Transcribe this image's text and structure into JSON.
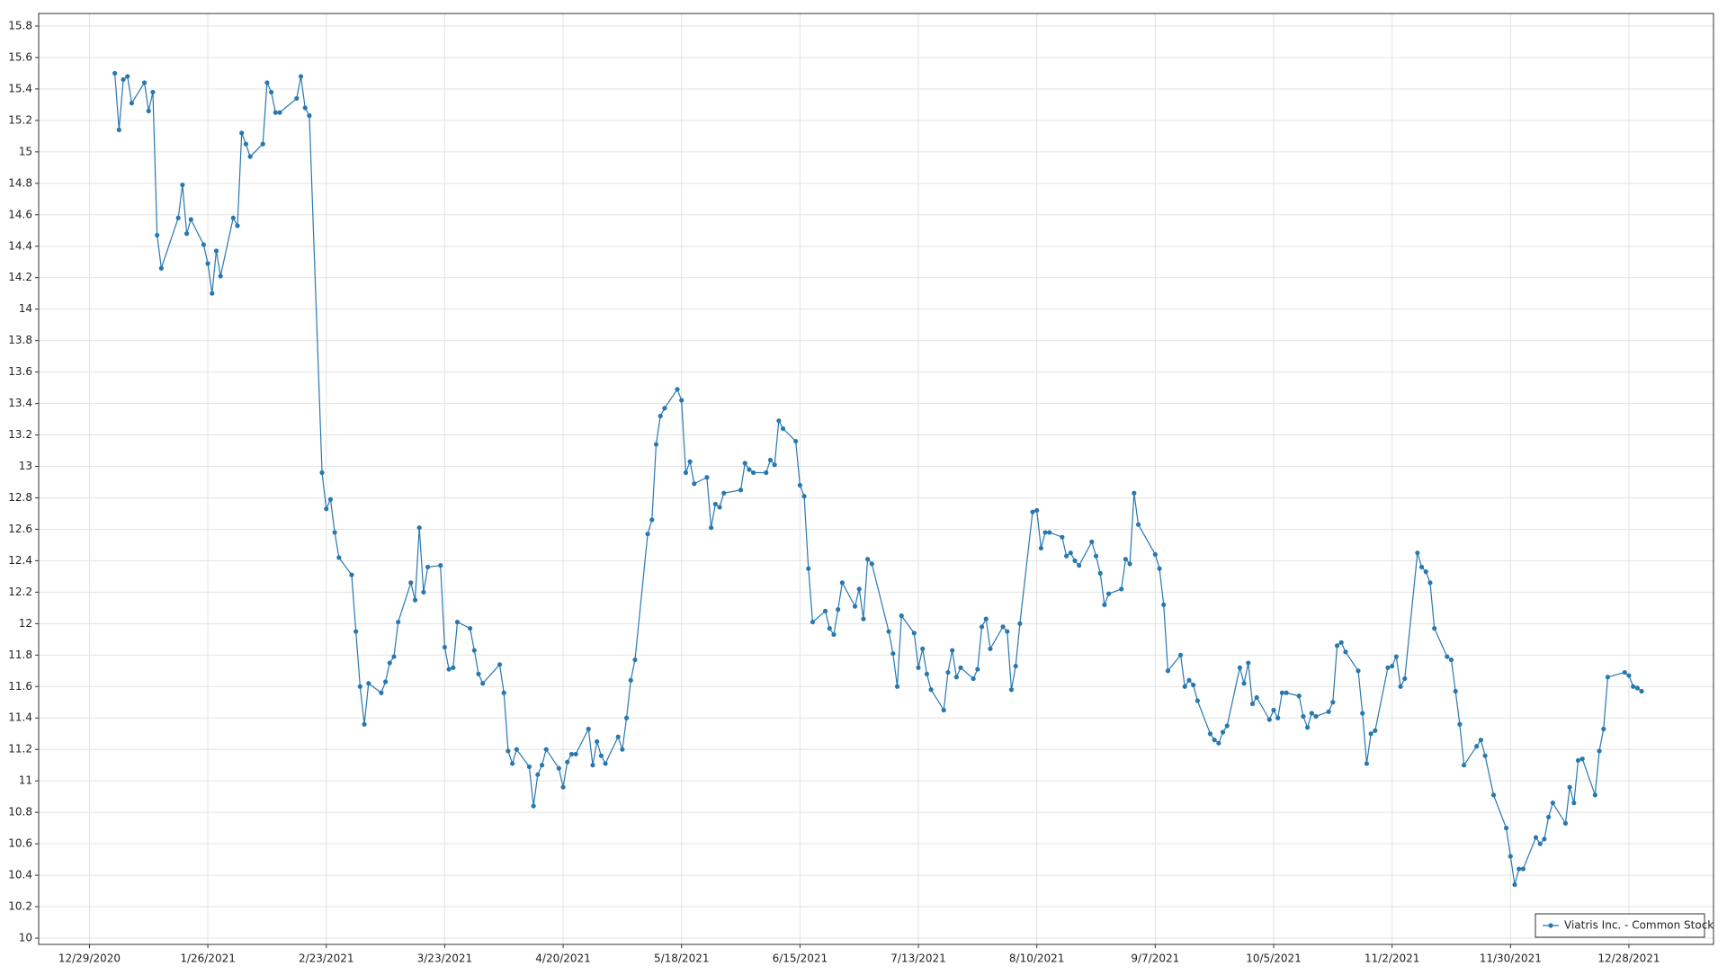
{
  "chart_data": {
    "type": "line",
    "x": [
      "1/4/2021",
      "1/5/2021",
      "1/6/2021",
      "1/7/2021",
      "1/8/2021",
      "1/11/2021",
      "1/12/2021",
      "1/13/2021",
      "1/14/2021",
      "1/15/2021",
      "1/19/2021",
      "1/20/2021",
      "1/21/2021",
      "1/22/2021",
      "1/25/2021",
      "1/26/2021",
      "1/27/2021",
      "1/28/2021",
      "1/29/2021",
      "2/1/2021",
      "2/2/2021",
      "2/3/2021",
      "2/4/2021",
      "2/5/2021",
      "2/8/2021",
      "2/9/2021",
      "2/10/2021",
      "2/11/2021",
      "2/12/2021",
      "2/16/2021",
      "2/17/2021",
      "2/18/2021",
      "2/19/2021",
      "2/22/2021",
      "2/23/2021",
      "2/24/2021",
      "2/25/2021",
      "2/26/2021",
      "3/1/2021",
      "3/2/2021",
      "3/3/2021",
      "3/4/2021",
      "3/5/2021",
      "3/8/2021",
      "3/9/2021",
      "3/10/2021",
      "3/11/2021",
      "3/12/2021",
      "3/15/2021",
      "3/16/2021",
      "3/17/2021",
      "3/18/2021",
      "3/19/2021",
      "3/22/2021",
      "3/23/2021",
      "3/24/2021",
      "3/25/2021",
      "3/26/2021",
      "3/29/2021",
      "3/30/2021",
      "3/31/2021",
      "4/1/2021",
      "4/5/2021",
      "4/6/2021",
      "4/7/2021",
      "4/8/2021",
      "4/9/2021",
      "4/12/2021",
      "4/13/2021",
      "4/14/2021",
      "4/15/2021",
      "4/16/2021",
      "4/19/2021",
      "4/20/2021",
      "4/21/2021",
      "4/22/2021",
      "4/23/2021",
      "4/26/2021",
      "4/27/2021",
      "4/28/2021",
      "4/29/2021",
      "4/30/2021",
      "5/3/2021",
      "5/4/2021",
      "5/5/2021",
      "5/6/2021",
      "5/7/2021",
      "5/10/2021",
      "5/11/2021",
      "5/12/2021",
      "5/13/2021",
      "5/14/2021",
      "5/17/2021",
      "5/18/2021",
      "5/19/2021",
      "5/20/2021",
      "5/21/2021",
      "5/24/2021",
      "5/25/2021",
      "5/26/2021",
      "5/27/2021",
      "5/28/2021",
      "6/1/2021",
      "6/2/2021",
      "6/3/2021",
      "6/4/2021",
      "6/7/2021",
      "6/8/2021",
      "6/9/2021",
      "6/10/2021",
      "6/11/2021",
      "6/14/2021",
      "6/15/2021",
      "6/16/2021",
      "6/17/2021",
      "6/18/2021",
      "6/21/2021",
      "6/22/2021",
      "6/23/2021",
      "6/24/2021",
      "6/25/2021",
      "6/28/2021",
      "6/29/2021",
      "6/30/2021",
      "7/1/2021",
      "7/2/2021",
      "7/6/2021",
      "7/7/2021",
      "7/8/2021",
      "7/9/2021",
      "7/12/2021",
      "7/13/2021",
      "7/14/2021",
      "7/15/2021",
      "7/16/2021",
      "7/19/2021",
      "7/20/2021",
      "7/21/2021",
      "7/22/2021",
      "7/23/2021",
      "7/26/2021",
      "7/27/2021",
      "7/28/2021",
      "7/29/2021",
      "7/30/2021",
      "8/2/2021",
      "8/3/2021",
      "8/4/2021",
      "8/5/2021",
      "8/6/2021",
      "8/9/2021",
      "8/10/2021",
      "8/11/2021",
      "8/12/2021",
      "8/13/2021",
      "8/16/2021",
      "8/17/2021",
      "8/18/2021",
      "8/19/2021",
      "8/20/2021",
      "8/23/2021",
      "8/24/2021",
      "8/25/2021",
      "8/26/2021",
      "8/27/2021",
      "8/30/2021",
      "8/31/2021",
      "9/1/2021",
      "9/2/2021",
      "9/3/2021",
      "9/7/2021",
      "9/8/2021",
      "9/9/2021",
      "9/10/2021",
      "9/13/2021",
      "9/14/2021",
      "9/15/2021",
      "9/16/2021",
      "9/17/2021",
      "9/20/2021",
      "9/21/2021",
      "9/22/2021",
      "9/23/2021",
      "9/24/2021",
      "9/27/2021",
      "9/28/2021",
      "9/29/2021",
      "9/30/2021",
      "10/1/2021",
      "10/4/2021",
      "10/5/2021",
      "10/6/2021",
      "10/7/2021",
      "10/8/2021",
      "10/11/2021",
      "10/12/2021",
      "10/13/2021",
      "10/14/2021",
      "10/15/2021",
      "10/18/2021",
      "10/19/2021",
      "10/20/2021",
      "10/21/2021",
      "10/22/2021",
      "10/25/2021",
      "10/26/2021",
      "10/27/2021",
      "10/28/2021",
      "10/29/2021",
      "11/1/2021",
      "11/2/2021",
      "11/3/2021",
      "11/4/2021",
      "11/5/2021",
      "11/8/2021",
      "11/9/2021",
      "11/10/2021",
      "11/11/2021",
      "11/12/2021",
      "11/15/2021",
      "11/16/2021",
      "11/17/2021",
      "11/18/2021",
      "11/19/2021",
      "11/22/2021",
      "11/23/2021",
      "11/24/2021",
      "11/26/2021",
      "11/29/2021",
      "11/30/2021",
      "12/1/2021",
      "12/2/2021",
      "12/3/2021",
      "12/6/2021",
      "12/7/2021",
      "12/8/2021",
      "12/9/2021",
      "12/10/2021",
      "12/13/2021",
      "12/14/2021",
      "12/15/2021",
      "12/16/2021",
      "12/17/2021",
      "12/20/2021",
      "12/21/2021",
      "12/22/2021",
      "12/23/2021",
      "12/27/2021",
      "12/28/2021",
      "12/29/2021",
      "12/30/2021",
      "12/31/2021"
    ],
    "series": [
      {
        "name": "Viatris Inc. - Common Stock",
        "color": "#2878b0",
        "values": [
          15.5,
          15.14,
          15.46,
          15.48,
          15.31,
          15.44,
          15.26,
          15.38,
          14.47,
          14.26,
          14.58,
          14.79,
          14.48,
          14.57,
          14.41,
          14.29,
          14.1,
          14.37,
          14.21,
          14.58,
          14.53,
          15.12,
          15.05,
          14.97,
          15.05,
          15.44,
          15.38,
          15.25,
          15.25,
          15.34,
          15.48,
          15.28,
          15.23,
          12.96,
          12.73,
          12.79,
          12.58,
          12.42,
          12.31,
          11.95,
          11.6,
          11.36,
          11.62,
          11.56,
          11.63,
          11.75,
          11.79,
          12.01,
          12.26,
          12.15,
          12.61,
          12.2,
          12.36,
          12.37,
          11.85,
          11.71,
          11.72,
          12.01,
          11.97,
          11.83,
          11.68,
          11.62,
          11.74,
          11.56,
          11.19,
          11.11,
          11.2,
          11.09,
          10.84,
          11.04,
          11.1,
          11.2,
          11.08,
          10.96,
          11.12,
          11.17,
          11.17,
          11.33,
          11.1,
          11.25,
          11.16,
          11.11,
          11.28,
          11.2,
          11.4,
          11.64,
          11.77,
          12.57,
          12.66,
          13.14,
          13.32,
          13.37,
          13.49,
          13.42,
          12.96,
          13.03,
          12.89,
          12.93,
          12.61,
          12.76,
          12.74,
          12.83,
          12.85,
          13.02,
          12.98,
          12.96,
          12.96,
          13.04,
          13.01,
          13.29,
          13.24,
          13.16,
          12.88,
          12.81,
          12.35,
          12.01,
          12.08,
          11.97,
          11.93,
          12.09,
          12.26,
          12.11,
          12.22,
          12.03,
          12.41,
          12.38,
          11.95,
          11.81,
          11.6,
          12.05,
          11.94,
          11.72,
          11.84,
          11.68,
          11.58,
          11.45,
          11.69,
          11.83,
          11.66,
          11.72,
          11.65,
          11.71,
          11.98,
          12.03,
          11.84,
          11.98,
          11.95,
          11.58,
          11.73,
          12.0,
          12.71,
          12.72,
          12.48,
          12.58,
          12.58,
          12.55,
          12.43,
          12.45,
          12.4,
          12.37,
          12.52,
          12.43,
          12.32,
          12.12,
          12.19,
          12.22,
          12.41,
          12.38,
          12.83,
          12.63,
          12.44,
          12.35,
          12.12,
          11.7,
          11.8,
          11.6,
          11.64,
          11.61,
          11.51,
          11.3,
          11.26,
          11.24,
          11.31,
          11.35,
          11.72,
          11.62,
          11.75,
          11.49,
          11.53,
          11.39,
          11.45,
          11.4,
          11.56,
          11.56,
          11.54,
          11.41,
          11.34,
          11.43,
          11.41,
          11.44,
          11.5,
          11.86,
          11.88,
          11.82,
          11.7,
          11.43,
          11.11,
          11.3,
          11.32,
          11.72,
          11.73,
          11.79,
          11.6,
          11.65,
          12.45,
          12.36,
          12.33,
          12.26,
          11.97,
          11.79,
          11.77,
          11.57,
          11.36,
          11.1,
          11.22,
          11.26,
          11.16,
          10.91,
          10.7,
          10.52,
          10.34,
          10.44,
          10.44,
          10.64,
          10.6,
          10.63,
          10.77,
          10.86,
          10.73,
          10.96,
          10.86,
          11.13,
          11.14,
          10.91,
          11.19,
          11.33,
          11.66,
          11.69,
          11.67,
          11.6,
          11.59,
          11.57
        ]
      }
    ],
    "xlim": [
      "12/17/2020",
      "1/17/2022"
    ],
    "xticks": [
      "12/29/2020",
      "1/26/2021",
      "2/23/2021",
      "3/23/2021",
      "4/20/2021",
      "5/18/2021",
      "6/15/2021",
      "7/13/2021",
      "8/10/2021",
      "9/7/2021",
      "10/5/2021",
      "11/2/2021",
      "11/30/2021",
      "12/28/2021"
    ],
    "ylim": [
      9.96,
      15.88
    ],
    "yticks": [
      10,
      10.2,
      10.4,
      10.6,
      10.8,
      11,
      11.2,
      11.4,
      11.6,
      11.8,
      12,
      12.2,
      12.4,
      12.6,
      12.8,
      13,
      13.2,
      13.4,
      13.6,
      13.8,
      14,
      14.2,
      14.4,
      14.6,
      14.8,
      15,
      15.2,
      15.4,
      15.6,
      15.8
    ],
    "grid": true,
    "legend": "lower right"
  }
}
